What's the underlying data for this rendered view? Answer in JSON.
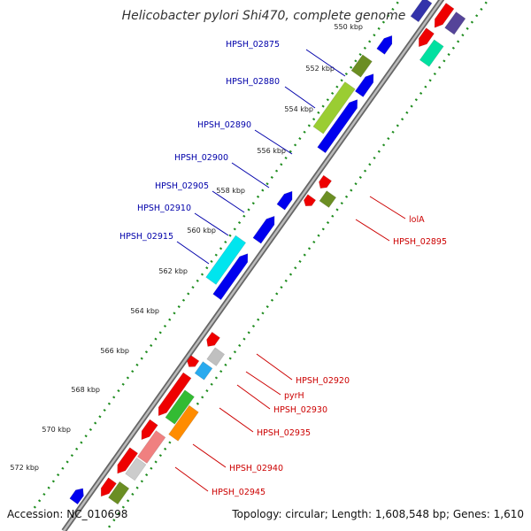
{
  "title": "Helicobacter pylori Shi470, complete genome",
  "accession": "Accession: NC_010698",
  "topology": "Topology: circular; Length: 1,608,548 bp; Genes: 1,610",
  "ticks": [
    "550 kbp",
    "552 kbp",
    "554 kbp",
    "556 kbp",
    "558 kbp",
    "560 kbp",
    "562 kbp",
    "564 kbp",
    "566 kbp",
    "568 kbp",
    "570 kbp",
    "572 kbp"
  ],
  "forward_labels": [
    "HPSH_02875",
    "HPSH_02880",
    "HPSH_02890",
    "HPSH_02900",
    "HPSH_02905",
    "HPSH_02910",
    "HPSH_02915"
  ],
  "reverse_labels": [
    "lolA",
    "HPSH_02895",
    "HPSH_02920",
    "pyrH",
    "HPSH_02930",
    "HPSH_02935",
    "HPSH_02940",
    "HPSH_02945"
  ],
  "colors": {
    "forward_label": "#0000aa",
    "reverse_label": "#cc0000",
    "blue_gene": "#0000ee",
    "red_gene": "#ee0000",
    "dotted_line": "#1e8c1e",
    "backbone": "#888888"
  }
}
